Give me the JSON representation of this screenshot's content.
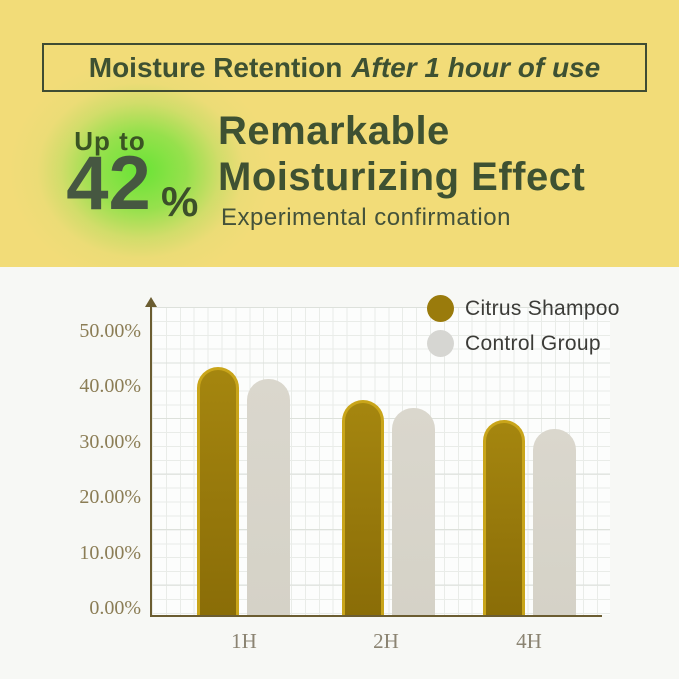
{
  "header": {
    "title_main": "Moisture Retention",
    "title_italic": "After 1 hour of use"
  },
  "highlight": {
    "prefix": "Up to",
    "value": "42",
    "percent_sign": "%",
    "headline_line1": "Remarkable",
    "headline_line2": "Moisturizing Effect",
    "subheadline": "Experimental confirmation"
  },
  "chart_data": {
    "type": "bar",
    "title": "",
    "categories": [
      "1H",
      "2H",
      "4H"
    ],
    "series": [
      {
        "name": "Citrus Shampoo",
        "color": "#9a7b0c",
        "values": [
          42,
          36.5,
          33
        ]
      },
      {
        "name": "Control Group",
        "color": "#d6d6d2",
        "values": [
          40,
          35,
          31.5
        ]
      }
    ],
    "values_unit": "%",
    "y_ticks": [
      "50.00%",
      "40.00%",
      "30.00%",
      "20.00%",
      "10.00%",
      "0.00%"
    ],
    "ylim": [
      0,
      50
    ],
    "grid": true,
    "legend_position": "top-right",
    "xlabel": "",
    "ylabel": ""
  },
  "colors": {
    "hero_background": "#f2dc78",
    "glow_green": "#62e432",
    "dark_green_text": "#3e5132",
    "big_number_text": "#465741",
    "panel_background": "#f7f8f5",
    "axis": "#6b5d31",
    "y_tick_text": "#8b7d55",
    "x_tick_text": "#8b8472",
    "citrus_bar": "#9c7d0e",
    "citrus_bar_rim": "#c9a51a",
    "control_bar": "#d5d2c7",
    "legend_text": "#3c3c38"
  }
}
